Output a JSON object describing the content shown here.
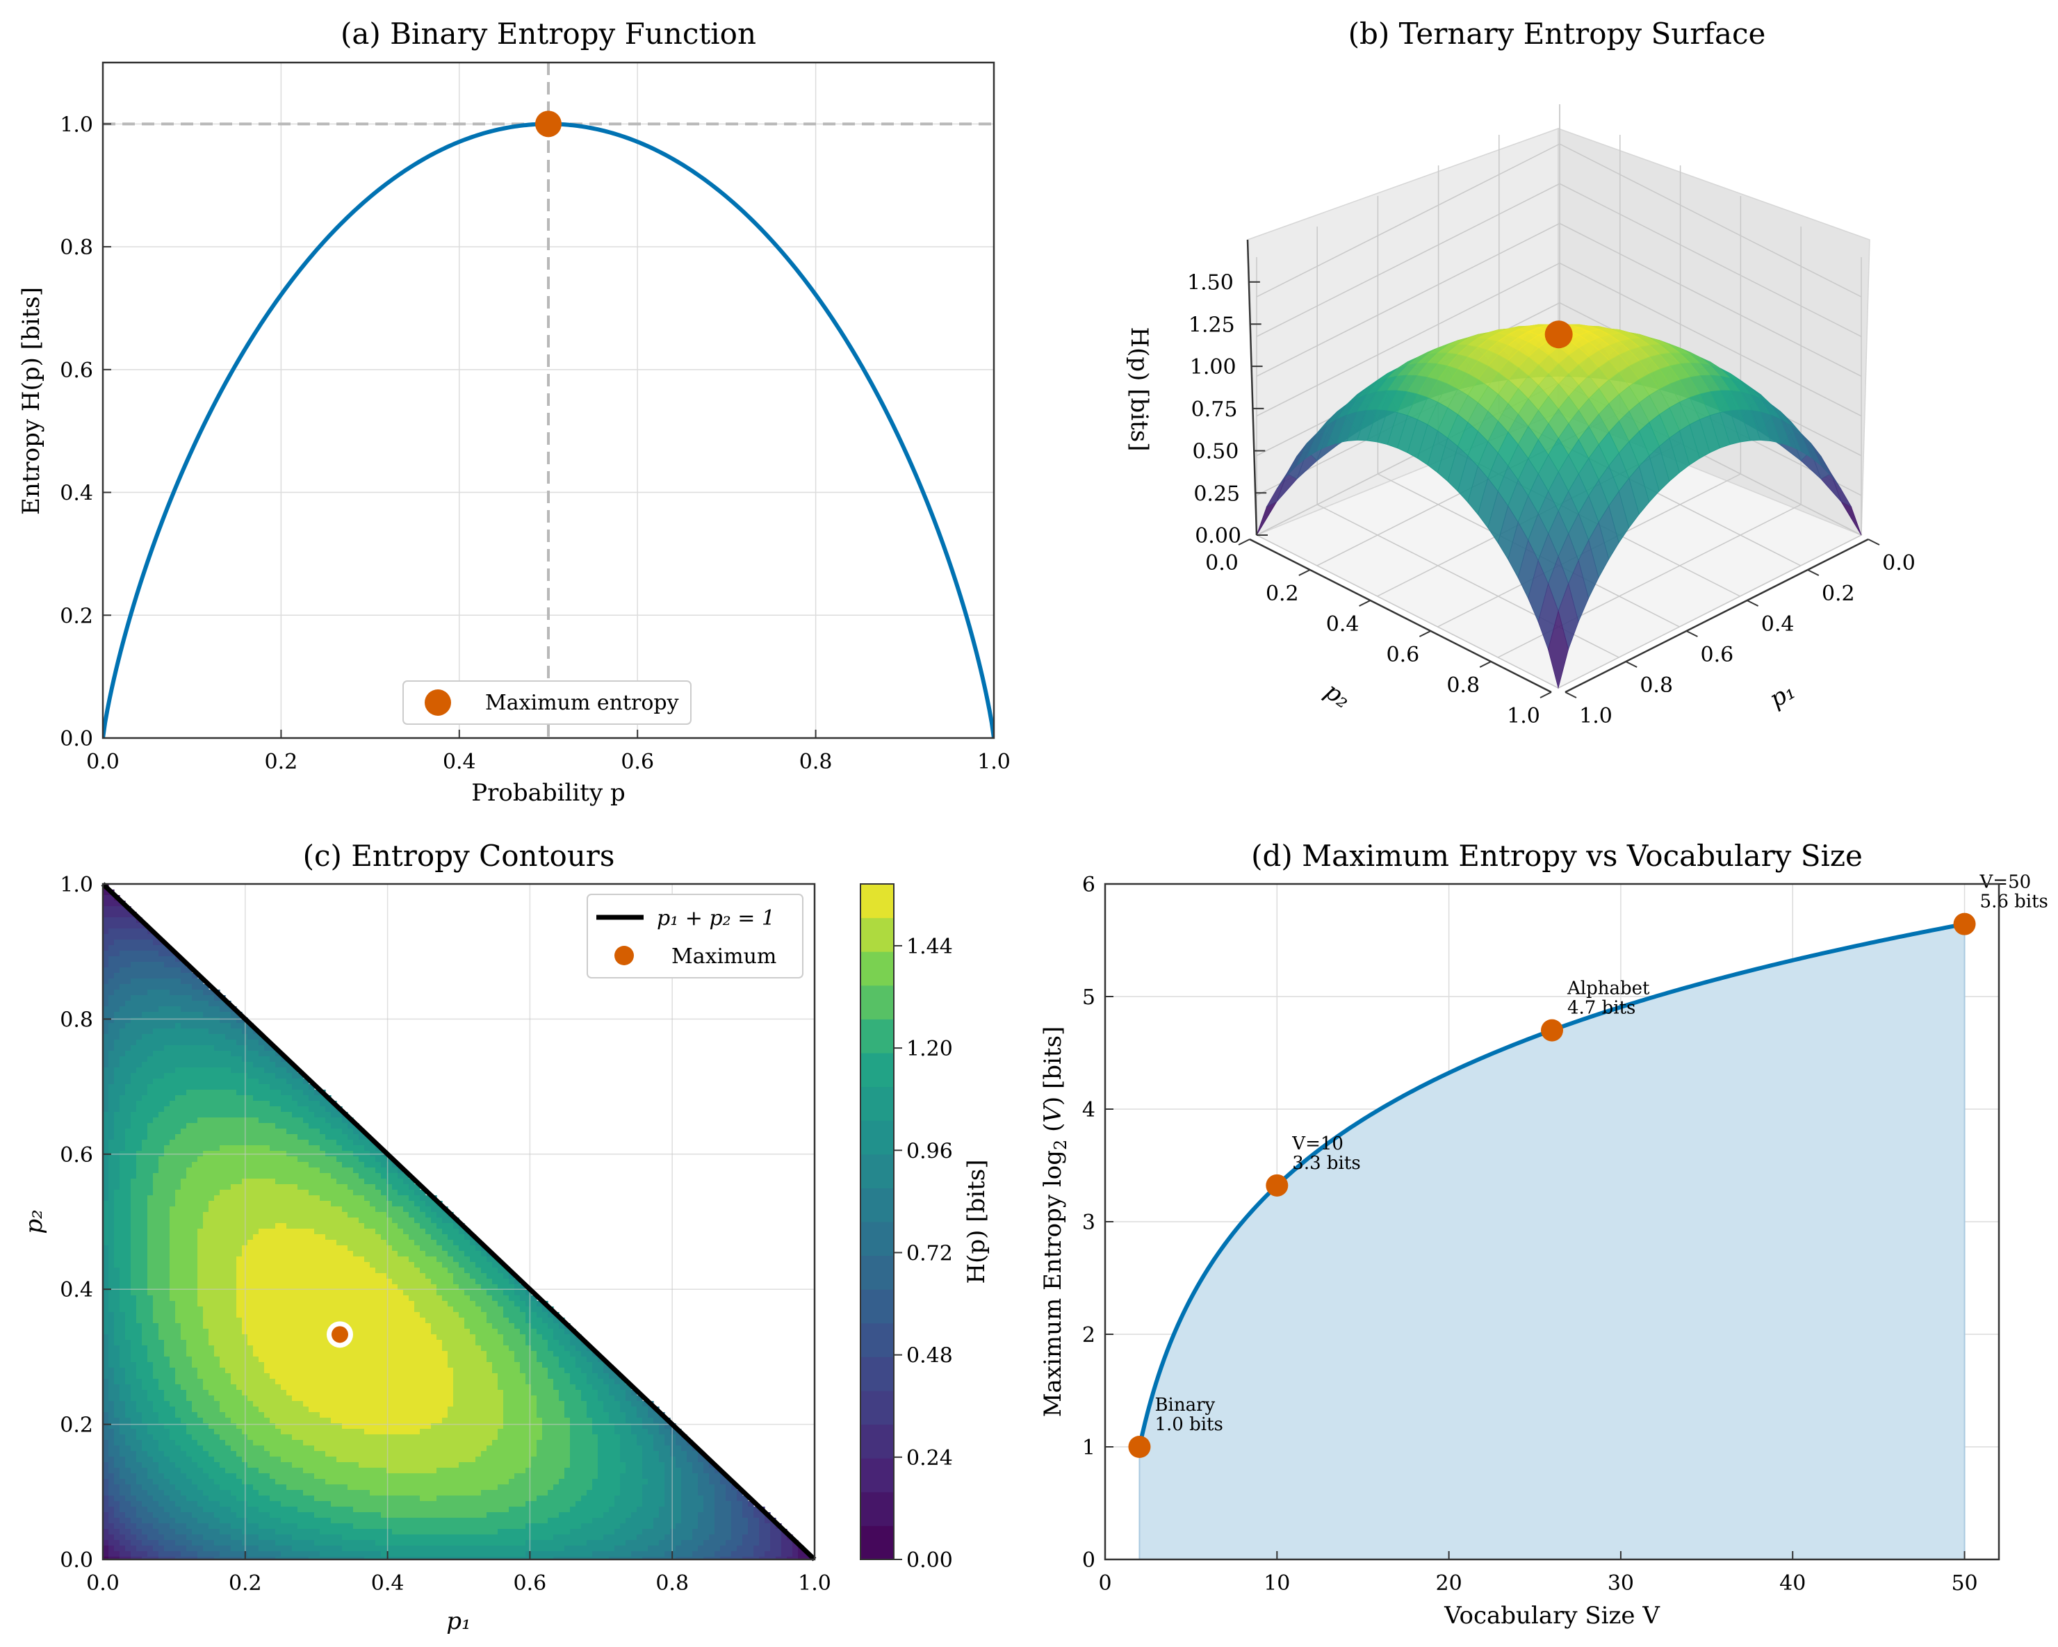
{
  "chart_data": [
    {
      "id": "a",
      "type": "line",
      "title": "(a) Binary Entropy Function",
      "xlabel": "Probability p",
      "ylabel": "Entropy H(p) [bits]",
      "xlim": [
        0,
        1
      ],
      "ylim": [
        0,
        1.1
      ],
      "xticks": [
        "0.0",
        "0.2",
        "0.4",
        "0.6",
        "0.8",
        "1.0"
      ],
      "yticks": [
        "0.0",
        "0.2",
        "0.4",
        "0.6",
        "0.8",
        "1.0"
      ],
      "grid": true,
      "function": "H(p) = -p log2 p - (1-p) log2 (1-p)",
      "series": [
        {
          "x": [
            0,
            0.05,
            0.1,
            0.2,
            0.3,
            0.4,
            0.5,
            0.6,
            0.7,
            0.8,
            0.9,
            0.95,
            1
          ],
          "y": [
            0,
            0.286,
            0.469,
            0.722,
            0.881,
            0.971,
            1.0,
            0.971,
            0.881,
            0.722,
            0.469,
            0.286,
            0
          ],
          "color": "#0072b2"
        }
      ],
      "reference_lines": {
        "x": 0.5,
        "y": 1.0,
        "style": "dashed",
        "color": "#b8b8b8"
      },
      "marker": {
        "x": 0.5,
        "y": 1.0,
        "color": "#d55e00"
      },
      "legend": {
        "label": "Maximum entropy",
        "placement": "lower center"
      }
    },
    {
      "id": "b",
      "type": "surface3d",
      "title": "(b) Ternary Entropy Surface",
      "xlabel": "p₁",
      "ylabel": "p₂",
      "zlabel": "H(p) [bits]",
      "xticks": [
        "0.0",
        "0.2",
        "0.4",
        "0.6",
        "0.8",
        "1.0"
      ],
      "yticks": [
        "0.0",
        "0.2",
        "0.4",
        "0.6",
        "0.8",
        "1.0"
      ],
      "zticks": [
        "0.00",
        "0.25",
        "0.50",
        "0.75",
        "1.00",
        "1.25",
        "1.50"
      ],
      "zlim": [
        0,
        1.585
      ],
      "function": "H = -p1 log2 p1 - p2 log2 p2 - (1-p1-p2) log2 (1-p1-p2)",
      "colormap": "viridis",
      "marker": {
        "p1": 0.333,
        "p2": 0.333,
        "z": 1.585,
        "color": "#d55e00"
      }
    },
    {
      "id": "c",
      "type": "heatmap",
      "title": "(c) Entropy Contours",
      "xlabel": "p₁",
      "ylabel": "p₂",
      "xlim": [
        0,
        1
      ],
      "ylim": [
        0,
        1
      ],
      "xticks": [
        "0.0",
        "0.2",
        "0.4",
        "0.6",
        "0.8",
        "1.0"
      ],
      "yticks": [
        "0.0",
        "0.2",
        "0.4",
        "0.6",
        "0.8",
        "1.0"
      ],
      "grid": true,
      "levels": 20,
      "colormap": "viridis",
      "colorbar": {
        "label": "H(p) [bits]",
        "ticks": [
          "0.00",
          "0.24",
          "0.48",
          "0.72",
          "0.96",
          "1.20",
          "1.44"
        ],
        "range": [
          0,
          1.585
        ]
      },
      "boundary_line": {
        "label": "p₁ + p₂ = 1",
        "color": "#000000"
      },
      "marker": {
        "label": "Maximum",
        "x": 0.333,
        "y": 0.333,
        "color": "#d55e00"
      },
      "legend": {
        "placement": "upper right",
        "entries": [
          "p₁ + p₂ = 1",
          "Maximum"
        ]
      }
    },
    {
      "id": "d",
      "type": "area",
      "title": "(d) Maximum Entropy vs Vocabulary Size",
      "xlabel": "Vocabulary Size V",
      "ylabel_parts": [
        "Maximum Entropy log",
        "2",
        " (",
        "V",
        ") [bits]"
      ],
      "xlim": [
        0,
        52
      ],
      "ylim": [
        0,
        6
      ],
      "xticks": [
        "0",
        "10",
        "20",
        "30",
        "40",
        "50"
      ],
      "yticks": [
        "0",
        "1",
        "2",
        "3",
        "4",
        "5",
        "6"
      ],
      "grid": true,
      "function": "log2(V)",
      "series": [
        {
          "x": [
            2,
            3,
            4,
            5,
            6,
            8,
            10,
            15,
            20,
            26,
            30,
            35,
            40,
            45,
            50
          ],
          "y": [
            1.0,
            1.585,
            2.0,
            2.322,
            2.585,
            3.0,
            3.322,
            3.907,
            4.322,
            4.7,
            4.907,
            5.129,
            5.322,
            5.492,
            5.644
          ],
          "color": "#0072b2",
          "fill": "#cde2ef"
        }
      ],
      "markers": [
        {
          "x": 2,
          "y": 1.0,
          "label1": "Binary",
          "label2": "1.0 bits"
        },
        {
          "x": 10,
          "y": 3.322,
          "label1": "V=10",
          "label2": "3.3 bits"
        },
        {
          "x": 26,
          "y": 4.7,
          "label1": "Alphabet",
          "label2": "4.7 bits"
        },
        {
          "x": 50,
          "y": 5.644,
          "label1": "V=50",
          "label2": "5.6 bits"
        }
      ]
    }
  ]
}
